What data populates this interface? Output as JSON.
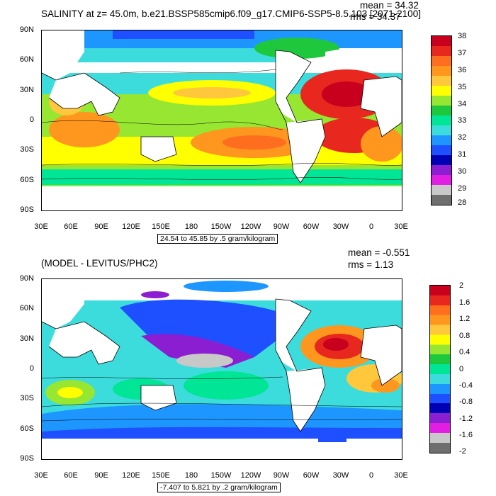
{
  "panel1": {
    "title": "SALINITY at z=  45.0m, b.e21.BSSP585cmip6.f09_g17.CMIP6-SSP5-8.5.103 [2071-2100]",
    "mean": "mean = 34.32",
    "rms": "rms = 34.37",
    "lat_labels": [
      "90N",
      "60N",
      "30N",
      "0",
      "30S",
      "60S",
      "90S"
    ],
    "lon_labels": [
      "30E",
      "60E",
      "90E",
      "120E",
      "150E",
      "180",
      "150W",
      "120W",
      "90W",
      "60W",
      "30W",
      "0",
      "30E"
    ],
    "colorbar_labels": [
      "38",
      "37",
      "36",
      "35",
      "34",
      "33",
      "32",
      "31",
      "30",
      "29",
      "28"
    ],
    "colorbar_colors": [
      "#c8001e",
      "#e8281e",
      "#ff6e1e",
      "#ff961e",
      "#ffc83c",
      "#ffff00",
      "#96e632",
      "#1ec83c",
      "#00e696",
      "#3cdcdc",
      "#1e96ff",
      "#1e50ff",
      "#0000b4",
      "#8c1ed2",
      "#e11ee1",
      "#c8c8c8",
      "#6e6e6e"
    ],
    "contour_info": "24.54 to 45.85 by .5 gram/kilogram"
  },
  "panel2": {
    "title": "(MODEL - LEVITUS/PHC2)",
    "mean": "mean = -0.551",
    "rms": "rms = 1.13",
    "lat_labels": [
      "90N",
      "60N",
      "30N",
      "0",
      "30S",
      "60S",
      "90S"
    ],
    "lon_labels": [
      "30E",
      "60E",
      "90E",
      "120E",
      "150E",
      "180",
      "150W",
      "120W",
      "90W",
      "60W",
      "30W",
      "0",
      "30E"
    ],
    "colorbar_labels": [
      "2",
      "1.6",
      "1.2",
      "0.8",
      "0.4",
      "0",
      "-0.4",
      "-0.8",
      "-1.2",
      "-1.6",
      "-2"
    ],
    "colorbar_colors": [
      "#c8001e",
      "#e8281e",
      "#ff6e1e",
      "#ff961e",
      "#ffc83c",
      "#ffff00",
      "#96e632",
      "#1ec83c",
      "#00e696",
      "#3cdcdc",
      "#1e96ff",
      "#1e50ff",
      "#0000b4",
      "#8c1ed2",
      "#e11ee1",
      "#c8c8c8",
      "#6e6e6e"
    ],
    "contour_info": "-7.407 to 5.821 by .2 gram/kilogram"
  }
}
